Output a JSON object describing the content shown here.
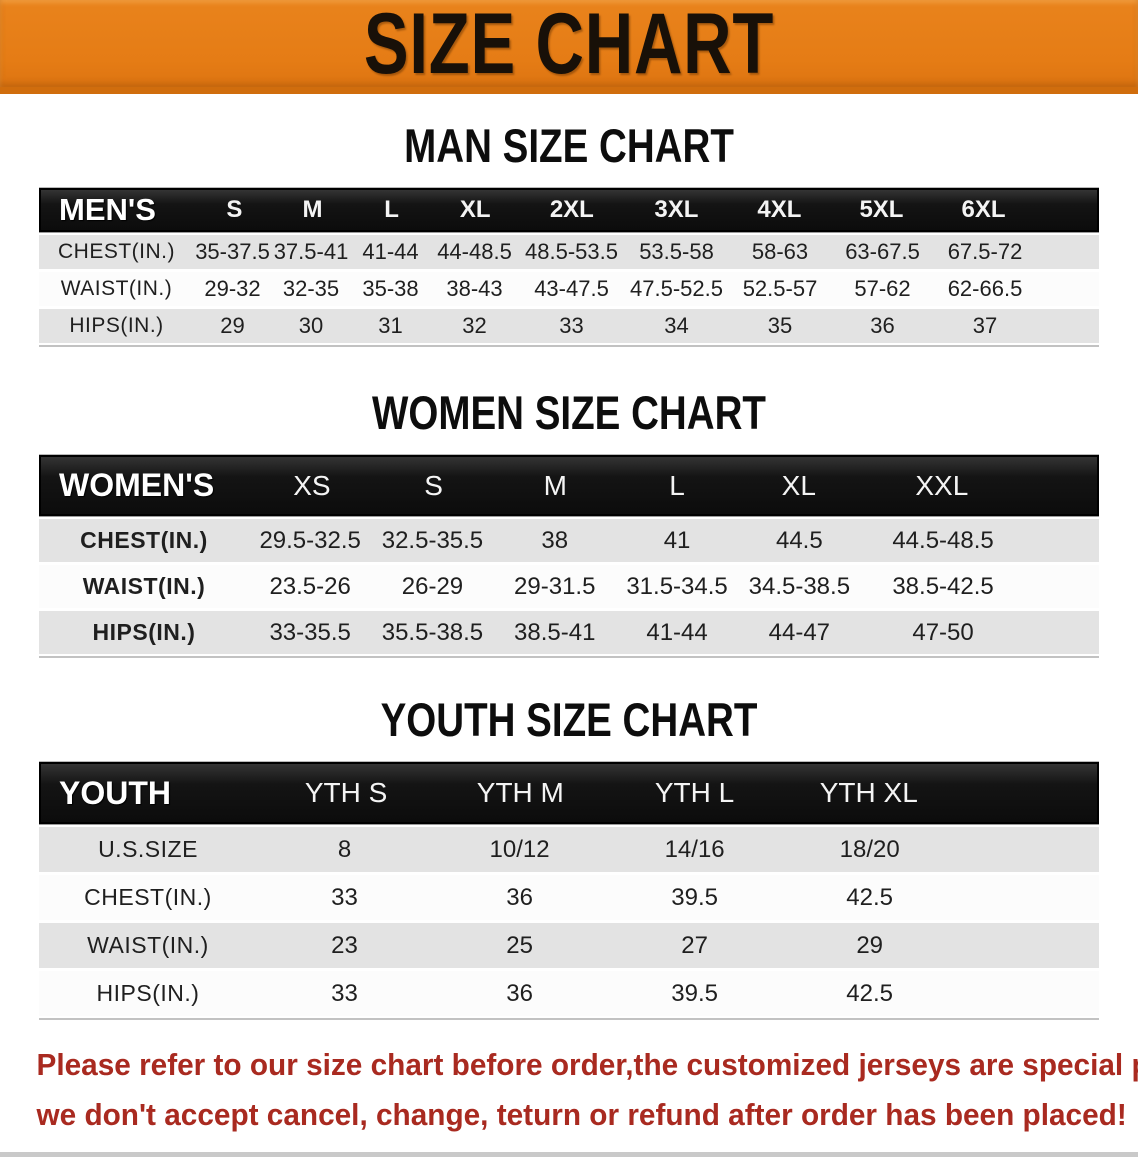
{
  "banner": {
    "title": "SIZE CHART",
    "bg_color": "#e57c15",
    "text_color": "#181008"
  },
  "sections": [
    {
      "heading": "MAN SIZE CHART",
      "label": "MEN'S",
      "columns": [
        "S",
        "M",
        "L",
        "XL",
        "2XL",
        "3XL",
        "4XL",
        "5XL",
        "6XL"
      ],
      "rows": [
        {
          "label": "CHEST(IN.)",
          "values": [
            "35-37.5",
            "37.5-41",
            "41-44",
            "44-48.5",
            "48.5-53.5",
            "53.5-58",
            "58-63",
            "63-67.5",
            "67.5-72"
          ]
        },
        {
          "label": "WAIST(IN.)",
          "values": [
            "29-32",
            "32-35",
            "35-38",
            "38-43",
            "43-47.5",
            "47.5-52.5",
            "52.5-57",
            "57-62",
            "62-66.5"
          ]
        },
        {
          "label": "HIPS(IN.)",
          "values": [
            "29",
            "30",
            "31",
            "32",
            "33",
            "34",
            "35",
            "36",
            "37"
          ]
        }
      ]
    },
    {
      "heading": "WOMEN SIZE CHART",
      "label": "WOMEN'S",
      "columns": [
        "XS",
        "S",
        "M",
        "L",
        "XL",
        "XXL"
      ],
      "rows": [
        {
          "label": "CHEST(IN.)",
          "values": [
            "29.5-32.5",
            "32.5-35.5",
            "38",
            "41",
            "44.5",
            "44.5-48.5"
          ]
        },
        {
          "label": "WAIST(IN.)",
          "values": [
            "23.5-26",
            "26-29",
            "29-31.5",
            "31.5-34.5",
            "34.5-38.5",
            "38.5-42.5"
          ]
        },
        {
          "label": "HIPS(IN.)",
          "values": [
            "33-35.5",
            "35.5-38.5",
            "38.5-41",
            "41-44",
            "44-47",
            "47-50"
          ]
        }
      ]
    },
    {
      "heading": "YOUTH SIZE CHART",
      "label": "YOUTH",
      "columns": [
        "YTH S",
        "YTH M",
        "YTH L",
        "YTH XL"
      ],
      "rows": [
        {
          "label": "U.S.SIZE",
          "values": [
            "8",
            "10/12",
            "14/16",
            "18/20"
          ]
        },
        {
          "label": "CHEST(IN.)",
          "values": [
            "33",
            "36",
            "39.5",
            "42.5"
          ]
        },
        {
          "label": "WAIST(IN.)",
          "values": [
            "23",
            "25",
            "27",
            "29"
          ]
        },
        {
          "label": "HIPS(IN.)",
          "values": [
            "33",
            "36",
            "39.5",
            "42.5"
          ]
        }
      ]
    }
  ],
  "footer": {
    "lines": [
      "Please refer to our size chart before order,the customized jerseys are special products,",
      "we don't accept cancel, change, teturn or refund after order has been placed!"
    ],
    "text_color": "#a92a20"
  }
}
